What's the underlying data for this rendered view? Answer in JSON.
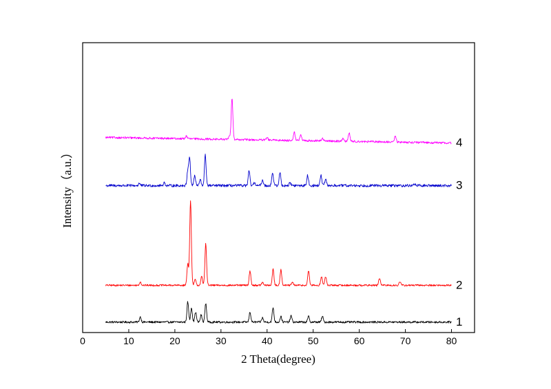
{
  "chart_data": {
    "type": "line",
    "xlabel": "2 Theta(degree)",
    "ylabel": "Intensity（a.u.）",
    "xlim": [
      0,
      85
    ],
    "ylim": [
      0,
      100
    ],
    "x_ticks": [
      0,
      10,
      20,
      30,
      40,
      50,
      60,
      70,
      80
    ],
    "x_tick_labels": [
      "0",
      "10",
      "20",
      "30",
      "40",
      "50",
      "60",
      "70",
      "80"
    ],
    "y_ticks_shown": false,
    "grid": false,
    "series": [
      {
        "name": "1",
        "color": "#000000",
        "x_range": [
          5,
          80
        ],
        "baseline": 3.6,
        "noise": 0.35,
        "peaks": [
          {
            "x": 12.5,
            "h": 1.8
          },
          {
            "x": 22.8,
            "h": 7.0
          },
          {
            "x": 23.6,
            "h": 5.0
          },
          {
            "x": 24.5,
            "h": 3.5
          },
          {
            "x": 25.7,
            "h": 2.5
          },
          {
            "x": 26.7,
            "h": 6.5
          },
          {
            "x": 36.3,
            "h": 3.5
          },
          {
            "x": 39.0,
            "h": 1.5
          },
          {
            "x": 41.3,
            "h": 5.0
          },
          {
            "x": 43.0,
            "h": 2.0
          },
          {
            "x": 45.2,
            "h": 2.2
          },
          {
            "x": 49.0,
            "h": 2.0
          },
          {
            "x": 52.0,
            "h": 2.0
          }
        ]
      },
      {
        "name": "2",
        "color": "#ff0000",
        "x_range": [
          5,
          80
        ],
        "baseline": 16.3,
        "noise": 0.3,
        "peaks": [
          {
            "x": 12.5,
            "h": 1.2
          },
          {
            "x": 22.8,
            "h": 7.5
          },
          {
            "x": 23.4,
            "h": 29.0
          },
          {
            "x": 24.4,
            "h": 2.0
          },
          {
            "x": 25.8,
            "h": 3.0
          },
          {
            "x": 26.7,
            "h": 14.5
          },
          {
            "x": 36.3,
            "h": 5.0
          },
          {
            "x": 39.0,
            "h": 1.0
          },
          {
            "x": 41.3,
            "h": 5.5
          },
          {
            "x": 43.0,
            "h": 5.5
          },
          {
            "x": 45.5,
            "h": 1.0
          },
          {
            "x": 49.0,
            "h": 5.0
          },
          {
            "x": 51.8,
            "h": 3.0
          },
          {
            "x": 52.7,
            "h": 3.0
          },
          {
            "x": 64.4,
            "h": 2.5
          },
          {
            "x": 68.8,
            "h": 1.2
          }
        ]
      },
      {
        "name": "3",
        "color": "#0000cc",
        "x_range": [
          5,
          80
        ],
        "baseline": 50.7,
        "noise": 0.45,
        "peaks": [
          {
            "x": 12.3,
            "h": 0.8
          },
          {
            "x": 17.7,
            "h": 1.0
          },
          {
            "x": 22.8,
            "h": 5.0
          },
          {
            "x": 23.2,
            "h": 9.5
          },
          {
            "x": 24.3,
            "h": 3.5
          },
          {
            "x": 25.5,
            "h": 2.0
          },
          {
            "x": 26.6,
            "h": 10.5
          },
          {
            "x": 36.1,
            "h": 5.0
          },
          {
            "x": 37.3,
            "h": 1.0
          },
          {
            "x": 39.0,
            "h": 2.0
          },
          {
            "x": 41.2,
            "h": 4.5
          },
          {
            "x": 42.8,
            "h": 4.5
          },
          {
            "x": 45.0,
            "h": 1.0
          },
          {
            "x": 48.8,
            "h": 3.5
          },
          {
            "x": 51.7,
            "h": 3.5
          },
          {
            "x": 52.7,
            "h": 2.0
          },
          {
            "x": 72.0,
            "h": 0.6
          }
        ]
      },
      {
        "name": "4",
        "color": "#ff00ff",
        "x_range": [
          5,
          80
        ],
        "baseline_start": 67.3,
        "baseline_end": 65.4,
        "noise": 0.35,
        "peaks": [
          {
            "x": 22.5,
            "h": 1.0
          },
          {
            "x": 31.8,
            "h": 1.0
          },
          {
            "x": 32.4,
            "h": 14.5
          },
          {
            "x": 40.0,
            "h": 0.8
          },
          {
            "x": 45.9,
            "h": 3.0
          },
          {
            "x": 47.3,
            "h": 2.0
          },
          {
            "x": 52.0,
            "h": 1.0
          },
          {
            "x": 56.5,
            "h": 1.0
          },
          {
            "x": 57.8,
            "h": 3.0
          },
          {
            "x": 67.8,
            "h": 2.0
          }
        ]
      }
    ]
  }
}
